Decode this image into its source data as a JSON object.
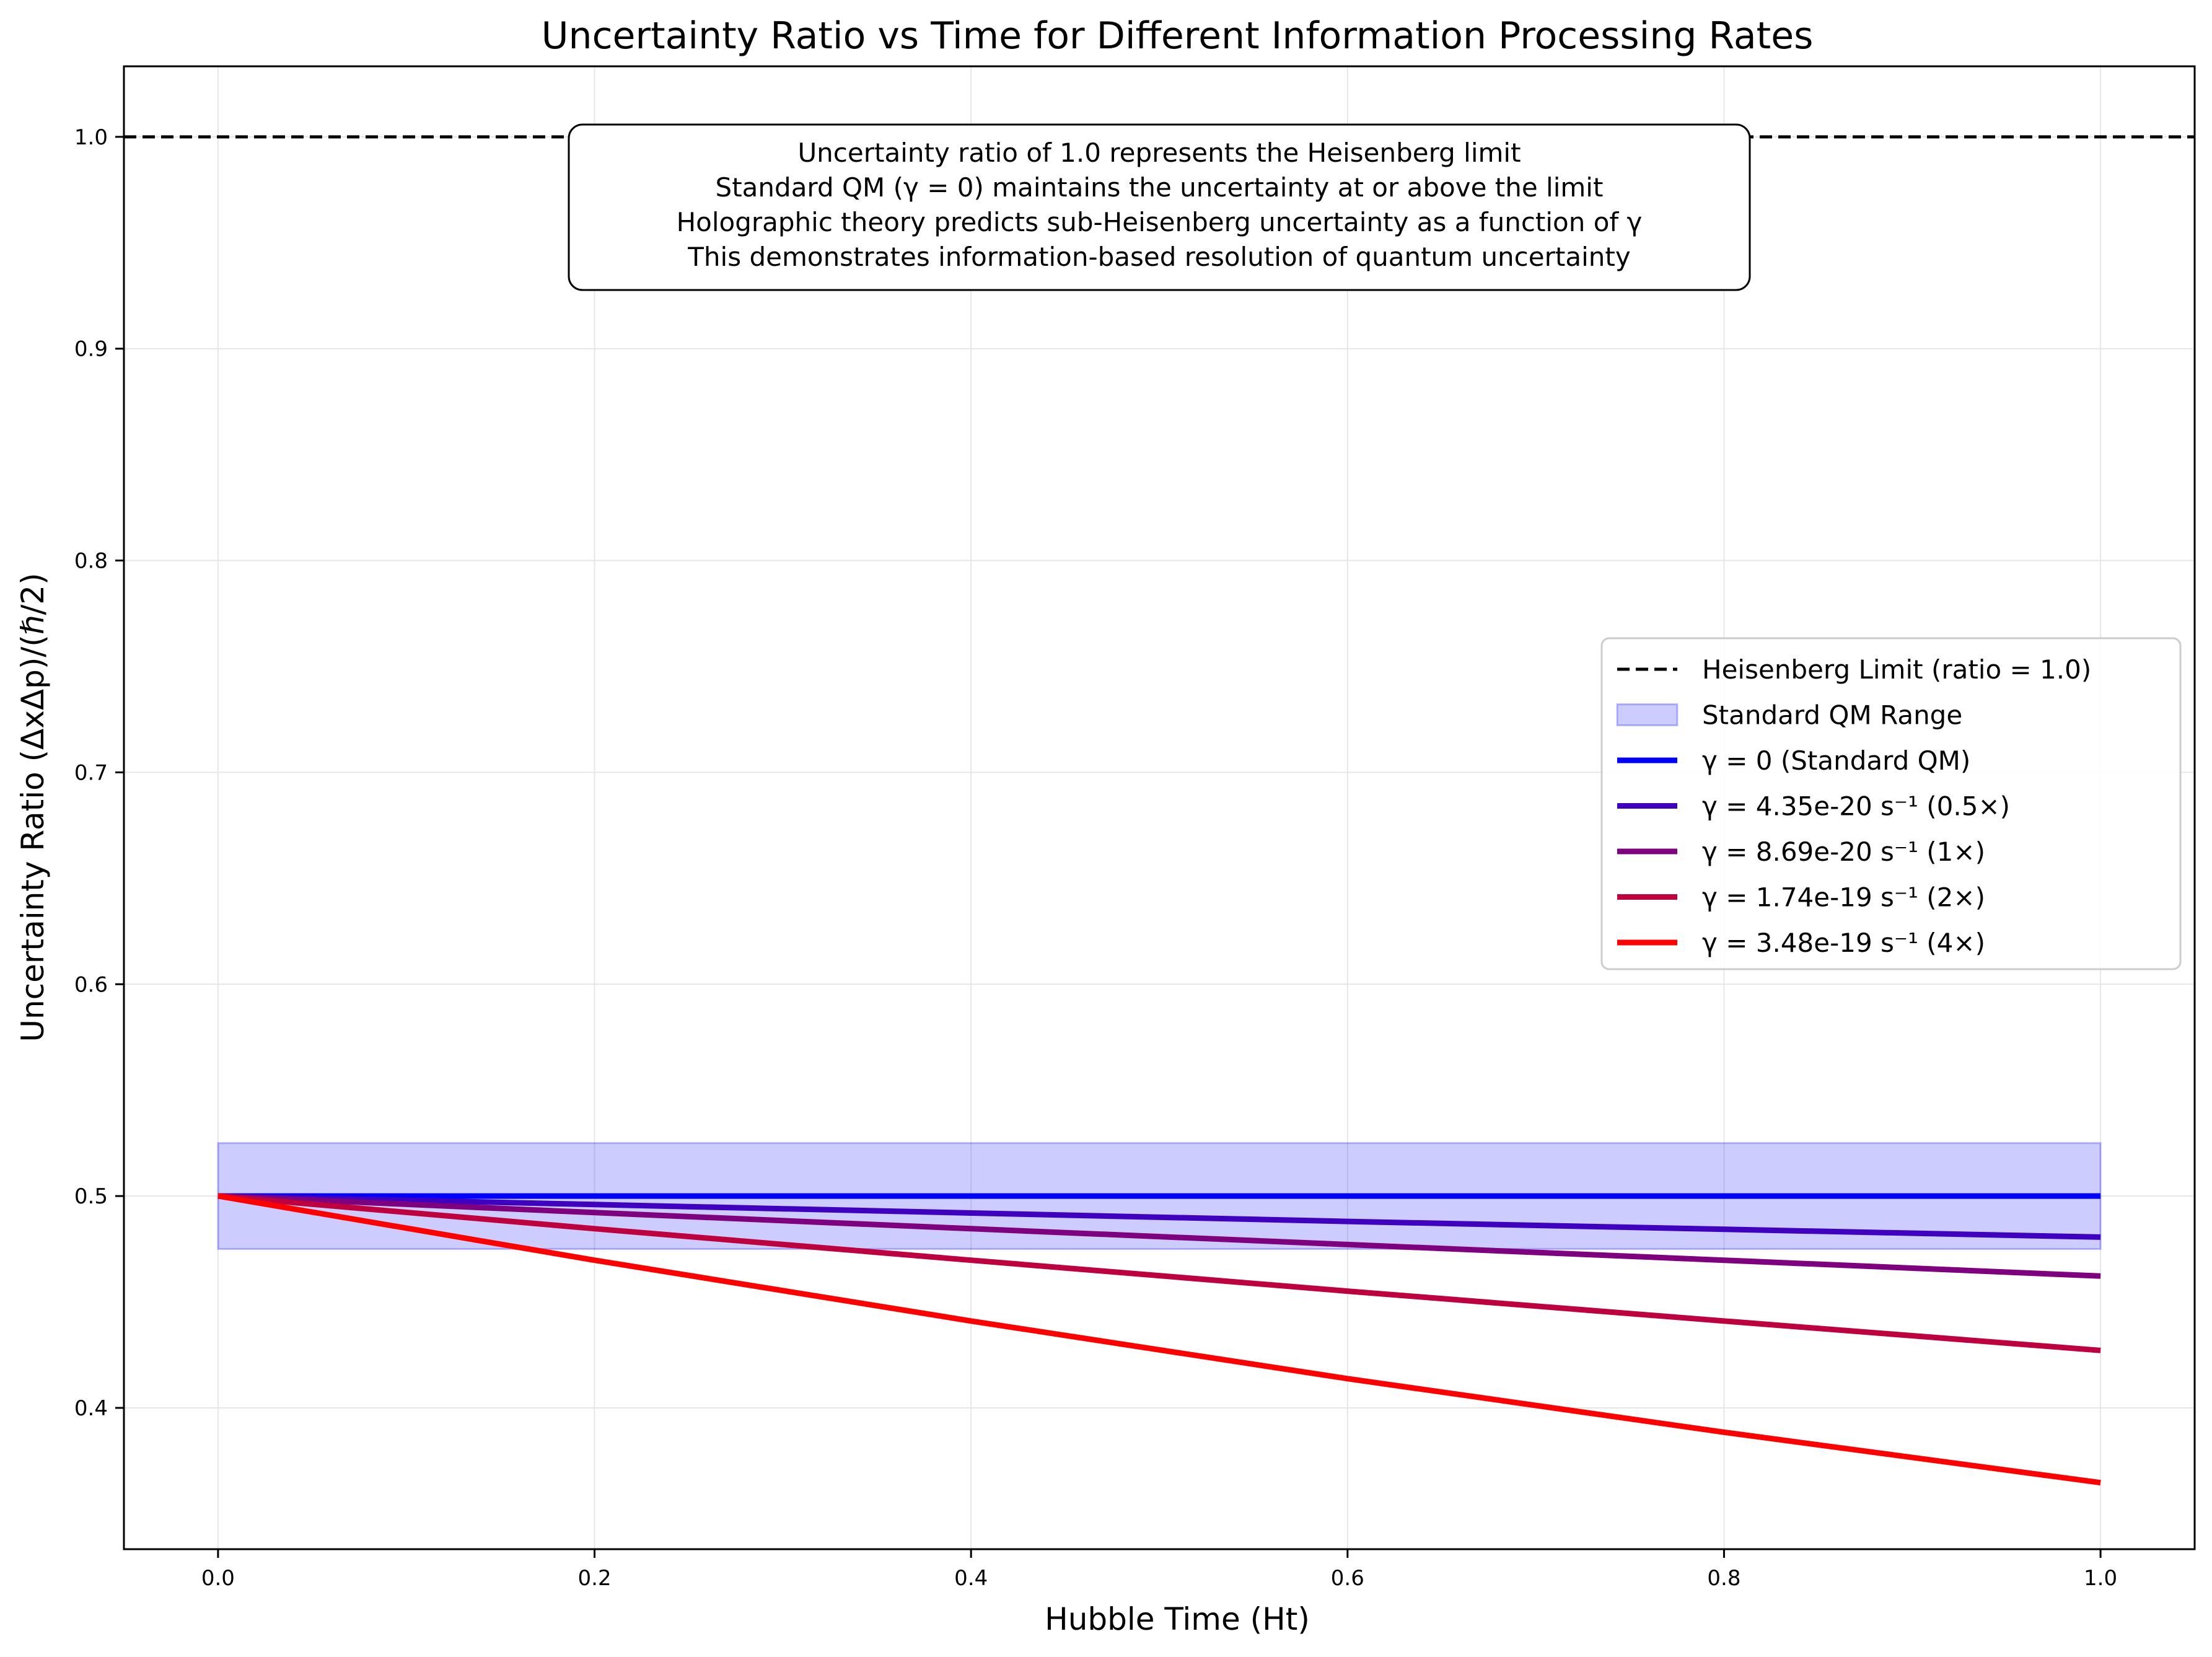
{
  "chart_data": {
    "type": "line",
    "title": "Uncertainty Ratio vs Time for Different Information Processing Rates",
    "xlabel": "Hubble Time (Ht)",
    "ylabel": "Uncertainty Ratio (ΔxΔp)/(ℏ/2)",
    "xlim": [
      -0.05,
      1.05
    ],
    "ylim": [
      0.3333,
      1.0333
    ],
    "xticks": [
      0.0,
      0.2,
      0.4,
      0.6,
      0.8,
      1.0
    ],
    "yticks": [
      0.4,
      0.5,
      0.6,
      0.7,
      0.8,
      0.9,
      1.0
    ],
    "grid": true,
    "legend_position": "center-right",
    "reference_line": {
      "label": "Heisenberg Limit (ratio = 1.0)",
      "y": 1.0,
      "color": "#000000",
      "style": "dashed"
    },
    "band": {
      "label": "Standard QM Range",
      "x": [
        0.0,
        1.0
      ],
      "y_low": 0.475,
      "y_high": 0.525,
      "color": "#0000ff"
    },
    "x": [
      0.0,
      0.2,
      0.4,
      0.6,
      0.8,
      1.0
    ],
    "series": [
      {
        "name": "γ = 0 (Standard QM)",
        "color": "#0000ff",
        "values": [
          0.5,
          0.5,
          0.5,
          0.5,
          0.5,
          0.5
        ]
      },
      {
        "name": "γ = 4.35e-20 s⁻¹ (0.5×)",
        "color": "#3f00bf",
        "values": [
          0.5,
          0.496,
          0.492,
          0.488,
          0.4843,
          0.4806
        ]
      },
      {
        "name": "γ = 8.69e-20 s⁻¹ (1×)",
        "color": "#7f007f",
        "values": [
          0.5,
          0.4922,
          0.4846,
          0.4771,
          0.4697,
          0.4622
        ]
      },
      {
        "name": "γ = 1.74e-19 s⁻¹ (2×)",
        "color": "#bf003f",
        "values": [
          0.5,
          0.4846,
          0.4697,
          0.4551,
          0.441,
          0.4271
        ]
      },
      {
        "name": "γ = 3.48e-19 s⁻¹ (4×)",
        "color": "#ff0000",
        "values": [
          0.5,
          0.4697,
          0.441,
          0.4138,
          0.3885,
          0.3647
        ]
      }
    ],
    "annotation": [
      "Uncertainty ratio of 1.0 represents the Heisenberg limit",
      "Standard QM (γ = 0) maintains the uncertainty at or above the limit",
      "Holographic theory predicts sub-Heisenberg uncertainty as a function of γ",
      "This demonstrates information-based resolution of quantum uncertainty"
    ]
  }
}
